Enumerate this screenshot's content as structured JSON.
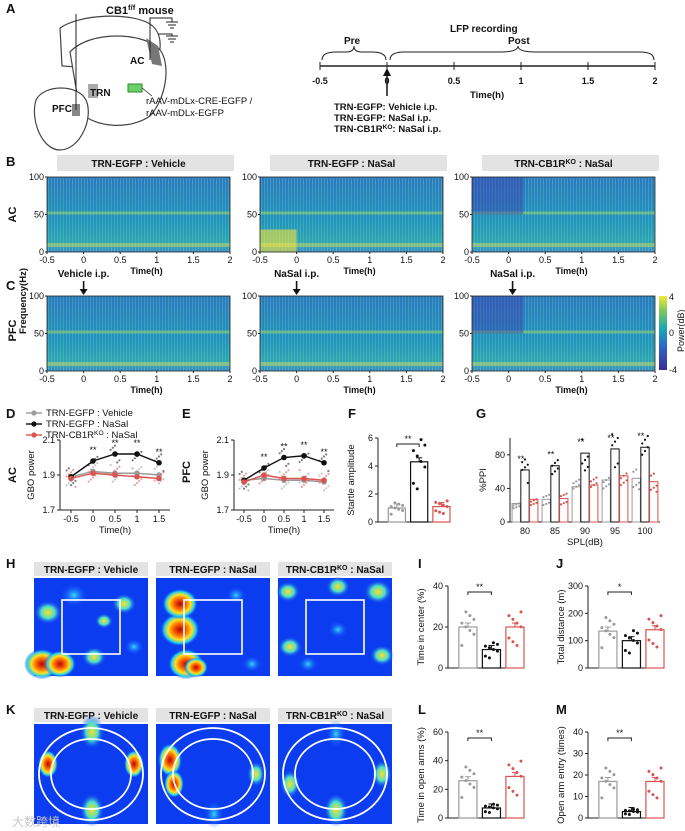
{
  "panel_letters": [
    "A",
    "B",
    "C",
    "D",
    "E",
    "F",
    "G",
    "H",
    "I",
    "J",
    "K",
    "L",
    "M"
  ],
  "panelA": {
    "mouse": "CB1f/f mouse",
    "region_ac": "AC",
    "region_trn": "TRN",
    "region_pfc": "PFC",
    "virus_line1": "rAAV-mDLx-CRE-EGFP /",
    "virus_line2": "rAAV-mDLx-EGFP",
    "timeline": {
      "title": "LFP recording",
      "pre": "Pre",
      "post": "Post",
      "ticks": [
        "-0.5",
        "0",
        "0.5",
        "1",
        "1.5",
        "2"
      ],
      "xlabel": "Time(h)",
      "treatments": [
        "TRN-EGFP: Vehicle i.p.",
        "TRN-EGFP: NaSal i.p.",
        "TRN-CB1RKO: NaSal i.p."
      ]
    }
  },
  "spectrograms": {
    "groups": [
      "TRN-EGFP : Vehicle",
      "TRN-EGFP : NaSal",
      "TRN-CB1RKO : NaSal"
    ],
    "rows": [
      "AC",
      "PFC"
    ],
    "ylabel": "Frequency(Hz)",
    "yticks": [
      "100",
      "50",
      "0"
    ],
    "xticks": [
      "-0.5",
      "0",
      "0.5",
      "1",
      "1.5",
      "2"
    ],
    "xlabel": "Time(h)",
    "injections": [
      "Vehicle i.p.",
      "NaSal i.p.",
      "NaSal i.p."
    ],
    "colorbar": {
      "label": "Power(dB)",
      "ticks": [
        "4",
        "0",
        "-4"
      ]
    }
  },
  "legend": [
    "TRN-EGFP : Vehicle",
    "TRN-EGFP : NaSal",
    "TRN-CB1RKO : NaSal"
  ],
  "colors": {
    "vehicle": "#9a9a9a",
    "nasal": "#111111",
    "ko": "#d9534f"
  },
  "chart_data": [
    {
      "id": "D",
      "type": "line",
      "ylabel": "GBO power",
      "region": "AC",
      "xlabel": "Time(h)",
      "x": [
        -0.5,
        0,
        0.5,
        1,
        1.5
      ],
      "ylim": [
        1.7,
        2.1
      ],
      "yticks": [
        "2.1",
        "1.9",
        "1.7"
      ],
      "xticks": [
        "-0.5",
        "0",
        "0.5",
        "1",
        "1.5"
      ],
      "series": [
        {
          "name": "TRN-EGFP : Vehicle",
          "values": [
            1.89,
            1.92,
            1.91,
            1.91,
            1.9
          ]
        },
        {
          "name": "TRN-EGFP : NaSal",
          "values": [
            1.89,
            1.98,
            2.02,
            2.02,
            1.97
          ]
        },
        {
          "name": "TRN-CB1RKO : NaSal",
          "values": [
            1.88,
            1.91,
            1.9,
            1.89,
            1.88
          ]
        }
      ],
      "significance": [
        "**",
        "**",
        "**",
        "**"
      ]
    },
    {
      "id": "E",
      "type": "line",
      "ylabel": "GBO power",
      "region": "PFC",
      "xlabel": "Time(h)",
      "x": [
        -0.5,
        0,
        0.5,
        1,
        1.5
      ],
      "ylim": [
        1.7,
        2.1
      ],
      "yticks": [
        "2.1",
        "1.9",
        "1.7"
      ],
      "xticks": [
        "-0.5",
        "0",
        "0.5",
        "1",
        "1.5"
      ],
      "series": [
        {
          "name": "TRN-EGFP : Vehicle",
          "values": [
            1.87,
            1.88,
            1.87,
            1.87,
            1.86
          ]
        },
        {
          "name": "TRN-EGFP : NaSal",
          "values": [
            1.87,
            1.94,
            2.0,
            2.01,
            1.97
          ]
        },
        {
          "name": "TRN-CB1RKO : NaSal",
          "values": [
            1.86,
            1.9,
            1.88,
            1.88,
            1.87
          ]
        }
      ],
      "significance": [
        "**",
        "**",
        "**",
        "**"
      ]
    },
    {
      "id": "F",
      "type": "bar",
      "ylabel": "Startle amplitude",
      "ylim": [
        0,
        6
      ],
      "yticks": [
        "0",
        "2",
        "4",
        "6"
      ],
      "categories": [
        "TRN-EGFP : Vehicle",
        "TRN-EGFP : NaSal",
        "TRN-CB1RKO : NaSal"
      ],
      "values": [
        1.0,
        4.3,
        1.1
      ],
      "significance": [
        "**"
      ]
    },
    {
      "id": "G",
      "type": "bar",
      "ylabel": "%PPI",
      "xlabel": "SPL(dB)",
      "ylim": [
        0,
        100
      ],
      "yticks": [
        "0",
        "40",
        "80"
      ],
      "categories": [
        "80",
        "85",
        "90",
        "95",
        "100"
      ],
      "series": [
        {
          "name": "TRN-EGFP : Vehicle",
          "values": [
            22,
            27,
            42,
            50,
            52
          ]
        },
        {
          "name": "TRN-EGFP : NaSal",
          "values": [
            62,
            67,
            82,
            87,
            89
          ]
        },
        {
          "name": "TRN-CB1RKO : NaSal",
          "values": [
            27,
            28,
            44,
            55,
            48
          ]
        }
      ],
      "significance": [
        "**",
        "**",
        "**",
        "**",
        "**"
      ]
    },
    {
      "id": "I",
      "type": "bar",
      "ylabel": "Time in center (%)",
      "ylim": [
        0,
        40
      ],
      "yticks": [
        "0",
        "20",
        "40"
      ],
      "categories": [
        "TRN-EGFP : Vehicle",
        "TRN-EGFP : NaSal",
        "TRN-CB1RKO : NaSal"
      ],
      "values": [
        20,
        9,
        20
      ],
      "significance": [
        "**"
      ]
    },
    {
      "id": "J",
      "type": "bar",
      "ylabel": "Total distance (m)",
      "ylim": [
        0,
        300
      ],
      "yticks": [
        "0",
        "100",
        "200",
        "300"
      ],
      "categories": [
        "TRN-EGFP : Vehicle",
        "TRN-EGFP : NaSal",
        "TRN-CB1RKO : NaSal"
      ],
      "values": [
        135,
        100,
        140
      ],
      "significance": [
        "*"
      ]
    },
    {
      "id": "L",
      "type": "bar",
      "ylabel": "Time in open arms (%)",
      "ylim": [
        0,
        60
      ],
      "yticks": [
        "0",
        "20",
        "40",
        "60"
      ],
      "categories": [
        "TRN-EGFP : Vehicle",
        "TRN-EGFP : NaSal",
        "TRN-CB1RKO : NaSal"
      ],
      "values": [
        26,
        7,
        29
      ],
      "significance": [
        "**"
      ]
    },
    {
      "id": "M",
      "type": "bar",
      "ylabel": "Open arm entry (times)",
      "ylim": [
        0,
        40
      ],
      "yticks": [
        "0",
        "10",
        "20",
        "30",
        "40"
      ],
      "categories": [
        "TRN-EGFP : Vehicle",
        "TRN-EGFP : NaSal",
        "TRN-CB1RKO : NaSal"
      ],
      "values": [
        17,
        3,
        17
      ],
      "significance": [
        "**"
      ]
    }
  ],
  "heatmaps": {
    "open_field": [
      "TRN-EGFP : Vehicle",
      "TRN-EGFP : NaSal",
      "TRN-CB1RKO : NaSal"
    ],
    "elevated_maze": [
      "TRN-EGFP : Vehicle",
      "TRN-EGFP : NaSal",
      "TRN-CB1RKO : NaSal"
    ]
  },
  "watermark": "大数跨境"
}
